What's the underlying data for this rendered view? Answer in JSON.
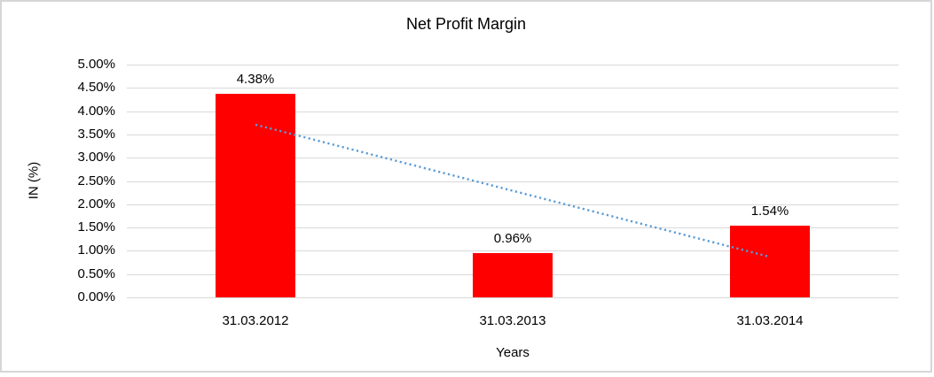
{
  "chart_data": {
    "type": "bar",
    "title": "Net Profit Margin",
    "xlabel": "Years",
    "ylabel": "IN (%)",
    "categories": [
      "31.03.2012",
      "31.03.2013",
      "31.03.2014"
    ],
    "values": [
      4.38,
      0.96,
      1.54
    ],
    "data_labels": [
      "4.38%",
      "0.96%",
      "1.54%"
    ],
    "y_ticks": [
      "5.00%",
      "4.50%",
      "4.00%",
      "3.50%",
      "3.00%",
      "2.50%",
      "2.00%",
      "1.50%",
      "1.00%",
      "0.50%",
      "0.00%"
    ],
    "ylim": [
      0,
      5
    ],
    "grid": true,
    "legend_position": "none",
    "bar_color": "#FF0000",
    "gridline_color": "#D9D9D9",
    "frame_border_color": "#D6D6D6",
    "trendline": {
      "type": "linear",
      "style": "dotted",
      "color": "#5B9BD5",
      "start_value": 3.71,
      "end_value": 0.87
    }
  }
}
